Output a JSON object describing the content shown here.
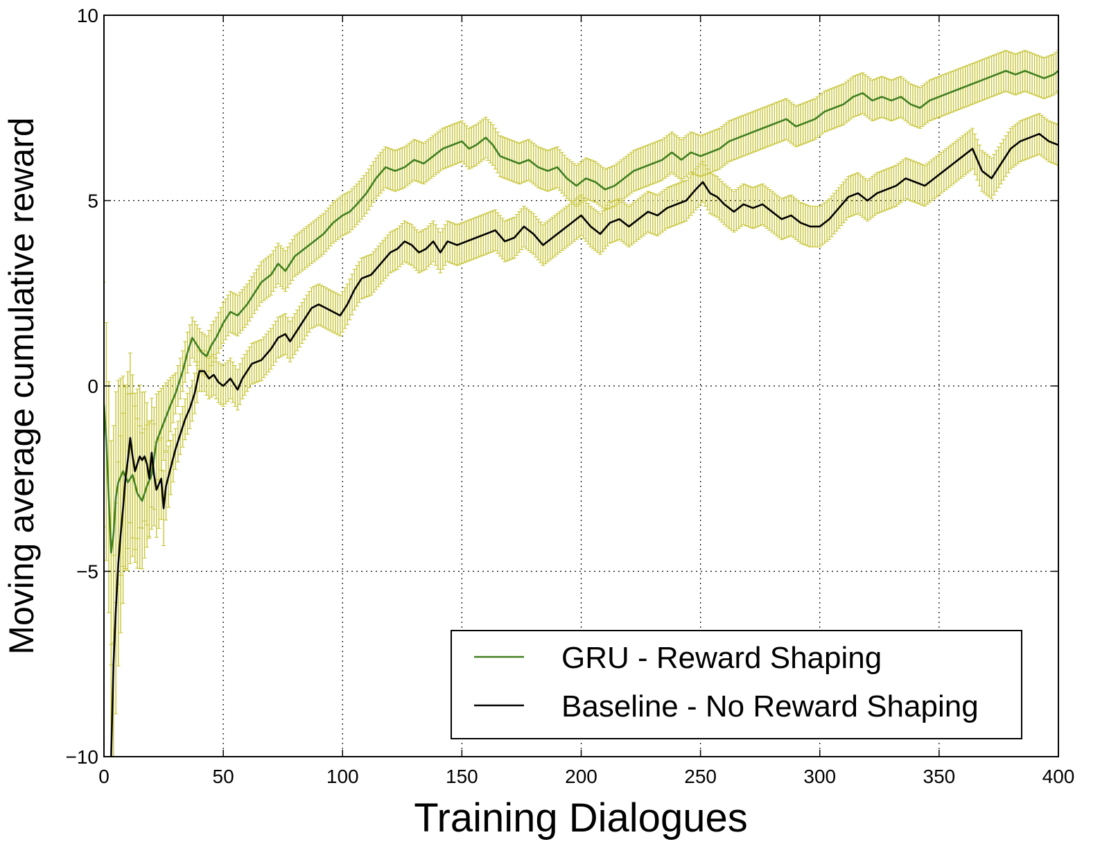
{
  "chart_data": {
    "type": "line",
    "xlabel": "Training Dialogues",
    "ylabel": "Moving average cumulative reward",
    "xlim": [
      0,
      400
    ],
    "ylim": [
      -10,
      10
    ],
    "xticks": [
      "0",
      "50",
      "100",
      "150",
      "200",
      "250",
      "300",
      "350",
      "400"
    ],
    "yticks": [
      "−10",
      "−5",
      "0",
      "5",
      "10"
    ],
    "grid": true,
    "grid_style": "dotted",
    "legend_position": "bottom-right",
    "error_bar_color": "#c6c435",
    "series": [
      {
        "name": "GRU - Reward Shaping",
        "color": "#3f7f1f",
        "errorbar_halfwidth": 0.55,
        "points": [
          [
            0,
            -0.5
          ],
          [
            1,
            -1.5
          ],
          [
            2,
            -3.0
          ],
          [
            3,
            -4.5
          ],
          [
            4,
            -4.0
          ],
          [
            5,
            -3.0
          ],
          [
            6,
            -2.6
          ],
          [
            8,
            -2.3
          ],
          [
            10,
            -2.6
          ],
          [
            12,
            -2.4
          ],
          [
            14,
            -2.9
          ],
          [
            16,
            -3.1
          ],
          [
            18,
            -2.7
          ],
          [
            20,
            -2.4
          ],
          [
            22,
            -1.5
          ],
          [
            25,
            -1.0
          ],
          [
            28,
            -0.5
          ],
          [
            30,
            -0.2
          ],
          [
            33,
            0.4
          ],
          [
            35,
            0.9
          ],
          [
            37,
            1.3
          ],
          [
            39,
            1.1
          ],
          [
            41,
            0.9
          ],
          [
            43,
            0.8
          ],
          [
            45,
            1.1
          ],
          [
            47,
            1.3
          ],
          [
            50,
            1.7
          ],
          [
            53,
            2.0
          ],
          [
            56,
            1.9
          ],
          [
            60,
            2.2
          ],
          [
            63,
            2.5
          ],
          [
            66,
            2.8
          ],
          [
            70,
            3.0
          ],
          [
            73,
            3.3
          ],
          [
            76,
            3.1
          ],
          [
            80,
            3.5
          ],
          [
            84,
            3.7
          ],
          [
            88,
            3.9
          ],
          [
            92,
            4.1
          ],
          [
            96,
            4.4
          ],
          [
            100,
            4.6
          ],
          [
            103,
            4.7
          ],
          [
            106,
            4.9
          ],
          [
            110,
            5.2
          ],
          [
            114,
            5.6
          ],
          [
            118,
            5.9
          ],
          [
            122,
            5.8
          ],
          [
            126,
            5.9
          ],
          [
            130,
            6.1
          ],
          [
            134,
            6.0
          ],
          [
            138,
            6.2
          ],
          [
            142,
            6.4
          ],
          [
            146,
            6.5
          ],
          [
            150,
            6.6
          ],
          [
            153,
            6.4
          ],
          [
            156,
            6.5
          ],
          [
            160,
            6.7
          ],
          [
            163,
            6.5
          ],
          [
            166,
            6.2
          ],
          [
            170,
            6.1
          ],
          [
            174,
            6.0
          ],
          [
            178,
            6.1
          ],
          [
            182,
            5.9
          ],
          [
            186,
            5.8
          ],
          [
            190,
            5.9
          ],
          [
            194,
            5.6
          ],
          [
            198,
            5.4
          ],
          [
            202,
            5.6
          ],
          [
            206,
            5.5
          ],
          [
            210,
            5.3
          ],
          [
            214,
            5.4
          ],
          [
            218,
            5.6
          ],
          [
            222,
            5.8
          ],
          [
            226,
            5.9
          ],
          [
            230,
            6.0
          ],
          [
            234,
            6.1
          ],
          [
            238,
            6.3
          ],
          [
            242,
            6.1
          ],
          [
            246,
            6.3
          ],
          [
            250,
            6.2
          ],
          [
            254,
            6.3
          ],
          [
            258,
            6.4
          ],
          [
            262,
            6.6
          ],
          [
            266,
            6.7
          ],
          [
            270,
            6.8
          ],
          [
            274,
            6.9
          ],
          [
            278,
            7.0
          ],
          [
            282,
            7.1
          ],
          [
            286,
            7.2
          ],
          [
            290,
            7.0
          ],
          [
            294,
            7.1
          ],
          [
            298,
            7.2
          ],
          [
            302,
            7.4
          ],
          [
            306,
            7.5
          ],
          [
            310,
            7.6
          ],
          [
            314,
            7.8
          ],
          [
            318,
            7.9
          ],
          [
            322,
            7.7
          ],
          [
            326,
            7.8
          ],
          [
            330,
            7.7
          ],
          [
            334,
            7.8
          ],
          [
            338,
            7.6
          ],
          [
            342,
            7.5
          ],
          [
            346,
            7.7
          ],
          [
            350,
            7.8
          ],
          [
            354,
            7.9
          ],
          [
            358,
            8.0
          ],
          [
            362,
            8.1
          ],
          [
            366,
            8.2
          ],
          [
            370,
            8.3
          ],
          [
            374,
            8.4
          ],
          [
            378,
            8.5
          ],
          [
            382,
            8.4
          ],
          [
            386,
            8.5
          ],
          [
            390,
            8.4
          ],
          [
            394,
            8.3
          ],
          [
            398,
            8.4
          ],
          [
            400,
            8.5
          ]
        ]
      },
      {
        "name": "Baseline - No Reward Shaping",
        "color": "#000000",
        "errorbar_halfwidth": 0.55,
        "points": [
          [
            3,
            -10.0
          ],
          [
            4,
            -7.5
          ],
          [
            5,
            -6.0
          ],
          [
            6,
            -4.8
          ],
          [
            7,
            -4.0
          ],
          [
            8,
            -3.3
          ],
          [
            9,
            -2.5
          ],
          [
            10,
            -2.0
          ],
          [
            11,
            -1.4
          ],
          [
            12,
            -1.9
          ],
          [
            13,
            -2.3
          ],
          [
            14,
            -2.1
          ],
          [
            15,
            -1.9
          ],
          [
            16,
            -2.0
          ],
          [
            17,
            -1.9
          ],
          [
            18,
            -2.1
          ],
          [
            19,
            -2.5
          ],
          [
            20,
            -1.8
          ],
          [
            21,
            -2.4
          ],
          [
            22,
            -2.8
          ],
          [
            24,
            -2.5
          ],
          [
            25,
            -3.3
          ],
          [
            26,
            -2.7
          ],
          [
            28,
            -2.2
          ],
          [
            30,
            -1.7
          ],
          [
            32,
            -1.3
          ],
          [
            34,
            -0.9
          ],
          [
            36,
            -0.6
          ],
          [
            38,
            -0.2
          ],
          [
            40,
            0.4
          ],
          [
            42,
            0.4
          ],
          [
            44,
            0.2
          ],
          [
            46,
            0.3
          ],
          [
            48,
            0.1
          ],
          [
            50,
            0.0
          ],
          [
            53,
            0.2
          ],
          [
            56,
            -0.1
          ],
          [
            58,
            0.2
          ],
          [
            62,
            0.6
          ],
          [
            66,
            0.7
          ],
          [
            70,
            1.0
          ],
          [
            73,
            1.3
          ],
          [
            76,
            1.4
          ],
          [
            78,
            1.2
          ],
          [
            81,
            1.5
          ],
          [
            84,
            1.8
          ],
          [
            87,
            2.1
          ],
          [
            90,
            2.2
          ],
          [
            93,
            2.1
          ],
          [
            96,
            2.0
          ],
          [
            99,
            1.9
          ],
          [
            102,
            2.2
          ],
          [
            105,
            2.6
          ],
          [
            108,
            2.9
          ],
          [
            112,
            3.0
          ],
          [
            116,
            3.3
          ],
          [
            120,
            3.6
          ],
          [
            123,
            3.7
          ],
          [
            126,
            3.9
          ],
          [
            129,
            3.8
          ],
          [
            132,
            3.6
          ],
          [
            135,
            3.7
          ],
          [
            138,
            3.9
          ],
          [
            141,
            3.6
          ],
          [
            144,
            3.9
          ],
          [
            148,
            3.8
          ],
          [
            152,
            3.9
          ],
          [
            156,
            4.0
          ],
          [
            160,
            4.1
          ],
          [
            164,
            4.2
          ],
          [
            168,
            3.9
          ],
          [
            172,
            4.0
          ],
          [
            176,
            4.3
          ],
          [
            180,
            4.1
          ],
          [
            184,
            3.8
          ],
          [
            188,
            4.0
          ],
          [
            192,
            4.2
          ],
          [
            196,
            4.4
          ],
          [
            200,
            4.6
          ],
          [
            204,
            4.3
          ],
          [
            208,
            4.1
          ],
          [
            212,
            4.4
          ],
          [
            216,
            4.5
          ],
          [
            220,
            4.3
          ],
          [
            224,
            4.5
          ],
          [
            228,
            4.7
          ],
          [
            232,
            4.6
          ],
          [
            236,
            4.8
          ],
          [
            240,
            4.9
          ],
          [
            244,
            5.0
          ],
          [
            248,
            5.3
          ],
          [
            251,
            5.5
          ],
          [
            254,
            5.2
          ],
          [
            257,
            5.1
          ],
          [
            260,
            4.9
          ],
          [
            264,
            4.7
          ],
          [
            268,
            4.9
          ],
          [
            272,
            4.8
          ],
          [
            276,
            4.9
          ],
          [
            280,
            4.7
          ],
          [
            284,
            4.5
          ],
          [
            288,
            4.6
          ],
          [
            292,
            4.4
          ],
          [
            296,
            4.3
          ],
          [
            300,
            4.3
          ],
          [
            304,
            4.5
          ],
          [
            308,
            4.8
          ],
          [
            312,
            5.1
          ],
          [
            316,
            5.2
          ],
          [
            320,
            5.0
          ],
          [
            324,
            5.2
          ],
          [
            328,
            5.3
          ],
          [
            332,
            5.4
          ],
          [
            336,
            5.6
          ],
          [
            340,
            5.5
          ],
          [
            344,
            5.4
          ],
          [
            348,
            5.6
          ],
          [
            352,
            5.8
          ],
          [
            356,
            6.0
          ],
          [
            360,
            6.2
          ],
          [
            364,
            6.4
          ],
          [
            368,
            5.8
          ],
          [
            372,
            5.6
          ],
          [
            376,
            6.0
          ],
          [
            380,
            6.4
          ],
          [
            384,
            6.6
          ],
          [
            388,
            6.7
          ],
          [
            392,
            6.8
          ],
          [
            396,
            6.6
          ],
          [
            400,
            6.5
          ]
        ]
      }
    ]
  }
}
